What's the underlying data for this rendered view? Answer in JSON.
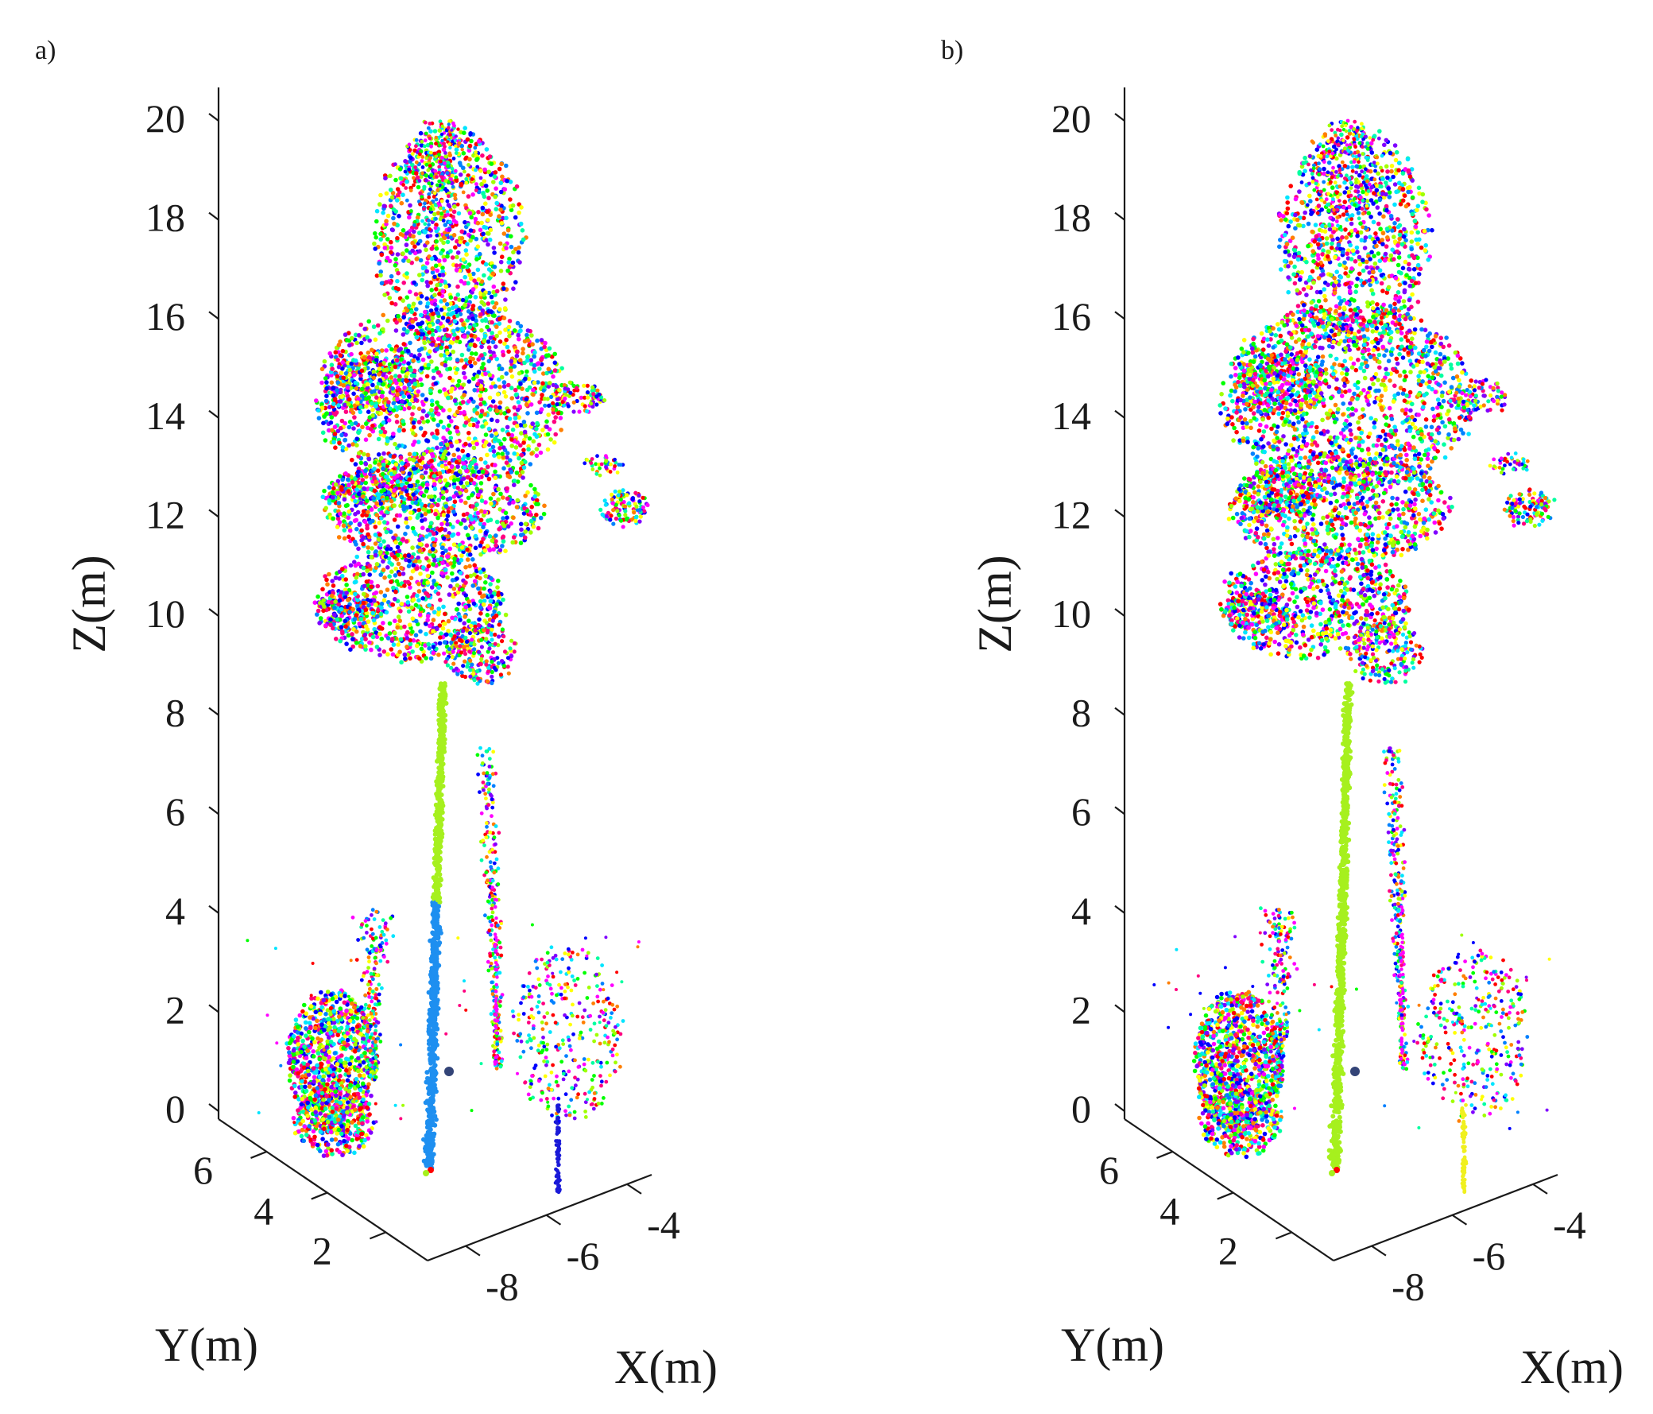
{
  "chart_data": [
    {
      "type": "scatter",
      "panel_label": "a)",
      "zlabel": "Z(m)",
      "ylabel": "Y(m)",
      "xlabel": "X(m)",
      "z_ticks": [
        "20",
        "18",
        "16",
        "14",
        "12",
        "10",
        "8",
        "6",
        "4",
        "2",
        "0"
      ],
      "y_ticks": [
        "6",
        "4",
        "2"
      ],
      "x_ticks": [
        "-8",
        "-6",
        "-4"
      ],
      "zlim": [
        0,
        20
      ],
      "grid": false,
      "projection": "3d",
      "colors": {
        "stem_lower": "#1e8ff0",
        "stem_upper": "#a6f01e",
        "small_tree_right_base": "#1a1ad8"
      },
      "palette": [
        "#ff0000",
        "#00ff00",
        "#0000ff",
        "#ff00ff",
        "#00e5ff",
        "#ffff00",
        "#00ffa0",
        "#ff7f00",
        "#a0ff00",
        "#8000ff",
        "#0080ff",
        "#ff0080",
        "#ffffff"
      ]
    },
    {
      "type": "scatter",
      "panel_label": "b)",
      "zlabel": "Z(m)",
      "ylabel": "Y(m)",
      "xlabel": "X(m)",
      "z_ticks": [
        "20",
        "18",
        "16",
        "14",
        "12",
        "10",
        "8",
        "6",
        "4",
        "2",
        "0"
      ],
      "y_ticks": [
        "6",
        "4",
        "2"
      ],
      "x_ticks": [
        "-8",
        "-6",
        "-4"
      ],
      "zlim": [
        0,
        20
      ],
      "grid": false,
      "projection": "3d",
      "colors": {
        "stem_lower": "#a6f01e",
        "stem_upper": "#a6f01e",
        "small_tree_right_base": "#f0f01e"
      },
      "palette": [
        "#ff0000",
        "#00ff00",
        "#0000ff",
        "#ff00ff",
        "#00e5ff",
        "#ffff00",
        "#00ffa0",
        "#ff7f00",
        "#a0ff00",
        "#8000ff",
        "#0080ff",
        "#ff0080",
        "#ffffff"
      ]
    }
  ]
}
